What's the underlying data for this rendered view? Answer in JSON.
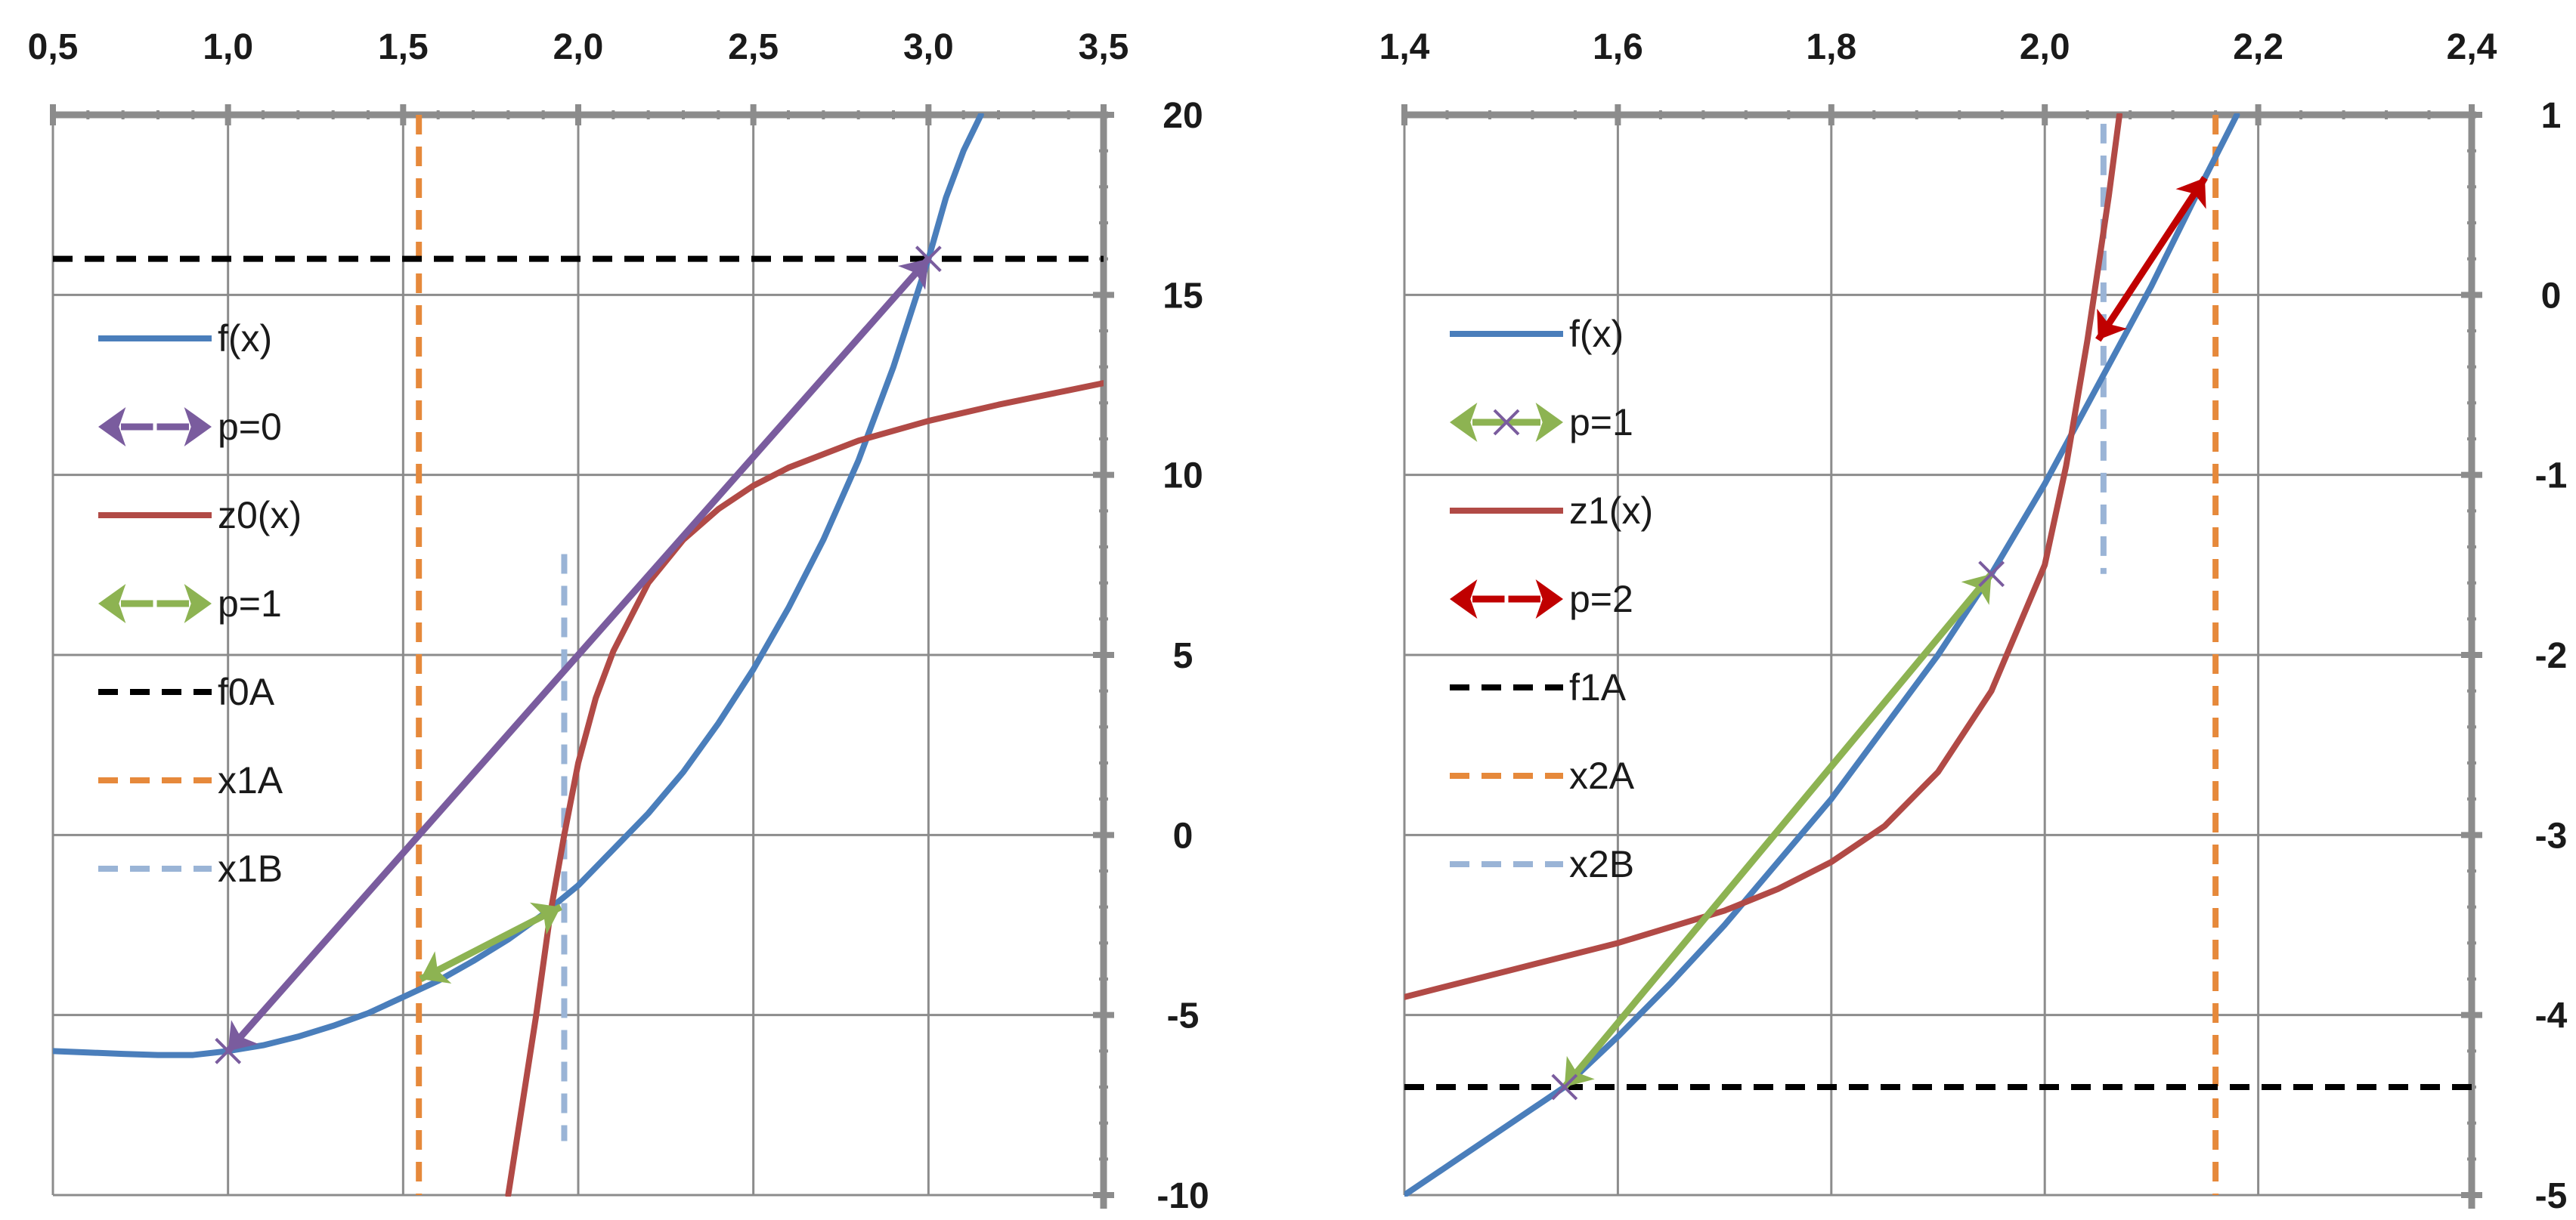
{
  "chart_data": [
    {
      "type": "line",
      "title": "",
      "xlabel": "",
      "ylabel": "",
      "xlim": [
        0.5,
        3.5
      ],
      "ylim": [
        -10,
        20
      ],
      "x_ticks": [
        0.5,
        1.0,
        1.5,
        2.0,
        2.5,
        3.0,
        3.5
      ],
      "x_tick_labels": [
        "0,5",
        "1,0",
        "1,5",
        "2,0",
        "2,5",
        "3,0",
        "3,5"
      ],
      "y_ticks": [
        -10,
        -5,
        0,
        5,
        10,
        15,
        20
      ],
      "y_tick_labels": [
        "-10",
        "-5",
        "0",
        "5",
        "10",
        "15",
        "20"
      ],
      "x_minor_step": 0.1,
      "y_minor_step": 1,
      "grid": true,
      "x_axis_position": "top",
      "y_axis_position": "right",
      "legend_position": "left",
      "legend": [
        {
          "label": "f(x)",
          "color": "#4a7ebb",
          "style": "solid"
        },
        {
          "label": "p=0",
          "color": "#7a5c9e",
          "style": "arrow"
        },
        {
          "label": "z0(x)",
          "color": "#b14a46",
          "style": "solid"
        },
        {
          "label": "p=1",
          "color": "#8db352",
          "style": "arrow"
        },
        {
          "label": "f0A",
          "color": "#000000",
          "style": "dashed"
        },
        {
          "label": "x1A",
          "color": "#e6893b",
          "style": "dashed"
        },
        {
          "label": "x1B",
          "color": "#9ab4d6",
          "style": "dashed"
        }
      ],
      "series": [
        {
          "name": "f(x)",
          "color": "#4a7ebb",
          "style": "solid",
          "x": [
            0.5,
            0.6,
            0.7,
            0.8,
            0.9,
            1.0,
            1.1,
            1.2,
            1.3,
            1.4,
            1.5,
            1.6,
            1.7,
            1.8,
            1.9,
            2.0,
            2.1,
            2.2,
            2.3,
            2.4,
            2.5,
            2.6,
            2.7,
            2.8,
            2.9,
            3.0,
            3.05,
            3.1,
            3.15
          ],
          "y": [
            -6.0,
            -6.04,
            -6.08,
            -6.11,
            -6.11,
            -6.0,
            -5.84,
            -5.6,
            -5.3,
            -4.95,
            -4.5,
            -4.05,
            -3.5,
            -2.9,
            -2.2,
            -1.4,
            -0.4,
            0.6,
            1.75,
            3.1,
            4.6,
            6.3,
            8.2,
            10.4,
            13.0,
            16.0,
            17.7,
            19.0,
            20.0
          ]
        },
        {
          "name": "z0(x)",
          "color": "#b14a46",
          "style": "solid",
          "x": [
            1.8,
            1.84,
            1.88,
            1.92,
            1.96,
            2.0,
            2.05,
            2.1,
            2.2,
            2.3,
            2.4,
            2.5,
            2.6,
            2.8,
            3.0,
            3.2,
            3.4,
            3.5
          ],
          "y": [
            -10.0,
            -7.5,
            -5.0,
            -2.2,
            0.0,
            2.0,
            3.8,
            5.1,
            7.0,
            8.2,
            9.05,
            9.7,
            10.2,
            10.95,
            11.5,
            11.95,
            12.35,
            12.55
          ]
        }
      ],
      "arrows": [
        {
          "name": "p=0",
          "color": "#7a5c9e",
          "from": [
            1.0,
            -6.0
          ],
          "to": [
            3.0,
            16.0
          ]
        },
        {
          "name": "p=1",
          "color": "#8db352",
          "from": [
            1.55,
            -4.0
          ],
          "to": [
            1.95,
            -2.0
          ]
        }
      ],
      "markers": [
        {
          "x": 1.0,
          "y": -6.0,
          "color": "#7a5c9e"
        },
        {
          "x": 3.0,
          "y": 16.0,
          "color": "#7a5c9e"
        }
      ],
      "hlines": [
        {
          "name": "f0A",
          "y": 16,
          "color": "#000000"
        }
      ],
      "vlines": [
        {
          "name": "x1A",
          "x": 1.545,
          "color": "#e6893b",
          "ymin": -10,
          "ymax": 20
        },
        {
          "name": "x1B",
          "x": 1.96,
          "color": "#9ab4d6",
          "ymin": -8.5,
          "ymax": 7.8
        }
      ]
    },
    {
      "type": "line",
      "title": "",
      "xlabel": "",
      "ylabel": "",
      "xlim": [
        1.4,
        2.4
      ],
      "ylim": [
        -5,
        1
      ],
      "x_ticks": [
        1.4,
        1.6,
        1.8,
        2.0,
        2.2,
        2.4
      ],
      "x_tick_labels": [
        "1,4",
        "1,6",
        "1,8",
        "2,0",
        "2,2",
        "2,4"
      ],
      "y_ticks": [
        -5,
        -4,
        -3,
        -2,
        -1,
        0,
        1
      ],
      "y_tick_labels": [
        "-5",
        "-4",
        "-3",
        "-2",
        "-1",
        "0",
        "1"
      ],
      "x_minor_step": 0.04,
      "y_minor_step": 0.2,
      "grid": true,
      "x_axis_position": "top",
      "y_axis_position": "right",
      "legend_position": "left",
      "legend": [
        {
          "label": "f(x)",
          "color": "#4a7ebb",
          "style": "solid"
        },
        {
          "label": "p=1",
          "color": "#8db352",
          "style": "arrow-marker"
        },
        {
          "label": "z1(x)",
          "color": "#b14a46",
          "style": "solid"
        },
        {
          "label": "p=2",
          "color": "#c00000",
          "style": "arrow"
        },
        {
          "label": "f1A",
          "color": "#000000",
          "style": "dashed"
        },
        {
          "label": "x2A",
          "color": "#e6893b",
          "style": "dashed"
        },
        {
          "label": "x2B",
          "color": "#9ab4d6",
          "style": "dashed"
        }
      ],
      "series": [
        {
          "name": "f(x)",
          "color": "#4a7ebb",
          "style": "solid",
          "x": [
            1.4,
            1.45,
            1.5,
            1.55,
            1.6,
            1.65,
            1.7,
            1.75,
            1.8,
            1.85,
            1.9,
            1.95,
            2.0,
            2.05,
            2.1,
            2.15,
            2.18
          ],
          "y": [
            -5.0,
            -4.8,
            -4.6,
            -4.4,
            -4.12,
            -3.82,
            -3.5,
            -3.15,
            -2.8,
            -2.4,
            -2.0,
            -1.55,
            -1.05,
            -0.5,
            0.05,
            0.65,
            1.0
          ]
        },
        {
          "name": "z1(x)",
          "color": "#b14a46",
          "style": "solid",
          "x": [
            1.4,
            1.5,
            1.6,
            1.7,
            1.75,
            1.8,
            1.85,
            1.9,
            1.95,
            2.0,
            2.02,
            2.04,
            2.06,
            2.07
          ],
          "y": [
            -3.9,
            -3.75,
            -3.6,
            -3.42,
            -3.3,
            -3.15,
            -2.95,
            -2.65,
            -2.2,
            -1.5,
            -0.95,
            -0.25,
            0.55,
            1.0
          ]
        }
      ],
      "arrows": [
        {
          "name": "p=1",
          "color": "#8db352",
          "from": [
            1.55,
            -4.4
          ],
          "to": [
            1.95,
            -1.55
          ]
        },
        {
          "name": "p=2",
          "color": "#c00000",
          "from": [
            2.05,
            -0.25
          ],
          "to": [
            2.15,
            0.65
          ]
        }
      ],
      "markers": [
        {
          "x": 1.55,
          "y": -4.4,
          "color": "#7a5c9e"
        },
        {
          "x": 1.95,
          "y": -1.55,
          "color": "#7a5c9e"
        }
      ],
      "hlines": [
        {
          "name": "f1A",
          "y": -4.4,
          "color": "#000000"
        }
      ],
      "vlines": [
        {
          "name": "x2A",
          "x": 2.16,
          "color": "#e6893b",
          "ymin": -5,
          "ymax": 1
        },
        {
          "name": "x2B",
          "x": 2.055,
          "color": "#9ab4d6",
          "ymin": -1.55,
          "ymax": 0.95
        }
      ]
    }
  ]
}
